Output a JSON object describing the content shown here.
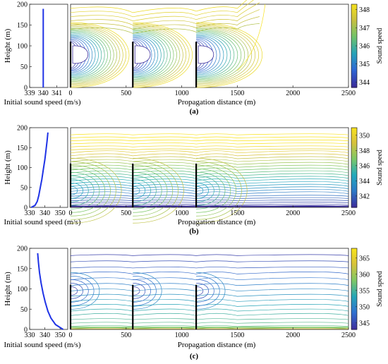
{
  "colors": {
    "profile_line": "#1f33e6",
    "cmap_a": [
      "#3a2b9a",
      "#2f66d4",
      "#27a2b8",
      "#6fc26a",
      "#c8c040",
      "#f7e11a"
    ],
    "cmap_b": [
      "#3b2e9c",
      "#2c79c7",
      "#22aabc",
      "#7cc867",
      "#d6c13c",
      "#f9e31c"
    ],
    "cmap_c": [
      "#3c2f9e",
      "#3070d0",
      "#26a6b6",
      "#80c865",
      "#d8c23a",
      "#fae61a"
    ]
  },
  "chart_data": [
    {
      "id": "a",
      "type": "contour",
      "caption": "(a)",
      "profile": {
        "xlabel": "Initial sound speed (m/s)",
        "ylabel": "Height (m)",
        "xlim": [
          339,
          341.8
        ],
        "xticks": [
          339,
          340,
          341
        ],
        "ylim": [
          0,
          200
        ],
        "yticks": [
          0,
          50,
          100,
          150,
          200
        ],
        "x": [
          340,
          340,
          340,
          340,
          340,
          340,
          340,
          340,
          340,
          340,
          340
        ],
        "y": [
          0,
          19,
          38,
          57,
          76,
          95,
          114,
          133,
          152,
          171,
          189
        ]
      },
      "field": {
        "xlabel": "Propagation distance (m)",
        "xlim": [
          0,
          2500
        ],
        "xticks": [
          0,
          500,
          1000,
          1500,
          2000,
          2500
        ],
        "ylim": [
          0,
          200
        ],
        "barriers_x": [
          0,
          560,
          1130
        ],
        "barrier_height": 110,
        "colorbar_label": "Sound speed",
        "colorbar_ticks": [
          344,
          345,
          346,
          347,
          348
        ],
        "colorbar_range": [
          343.7,
          348.3
        ]
      }
    },
    {
      "id": "b",
      "type": "contour",
      "caption": "(b)",
      "profile": {
        "xlabel": "Initial sound speed (m/s)",
        "ylabel": "Height (m)",
        "xlim": [
          330,
          355
        ],
        "xticks": [
          330,
          340,
          350
        ],
        "ylim": [
          0,
          200
        ],
        "yticks": [
          0,
          50,
          100,
          150,
          200
        ],
        "x": [
          331,
          333.5,
          335,
          336,
          337,
          338,
          339,
          340,
          340.8,
          341.5,
          342
        ],
        "y": [
          0,
          5,
          15,
          30,
          50,
          70,
          95,
          120,
          145,
          168,
          188
        ]
      },
      "field": {
        "xlabel": "Propagation distance (m)",
        "xlim": [
          0,
          2500
        ],
        "xticks": [
          0,
          500,
          1000,
          1500,
          2000,
          2500
        ],
        "ylim": [
          0,
          200
        ],
        "barriers_x": [
          0,
          560,
          1130
        ],
        "barrier_height": 110,
        "colorbar_label": "Sound speed",
        "colorbar_ticks": [
          342,
          344,
          346,
          348,
          350
        ],
        "colorbar_range": [
          340.5,
          351
        ]
      }
    },
    {
      "id": "c",
      "type": "contour",
      "caption": "(c)",
      "profile": {
        "xlabel": "Initial sound speed (m/s)",
        "ylabel": "Height (m)",
        "xlim": [
          330,
          355
        ],
        "xticks": [
          330,
          340,
          350
        ],
        "ylim": [
          0,
          200
        ],
        "yticks": [
          0,
          50,
          100,
          150,
          200
        ],
        "x": [
          352,
          347,
          344,
          342,
          340.2,
          338.8,
          337.5,
          336.5,
          335.8,
          335.3
        ],
        "y": [
          0,
          12,
          28,
          45,
          68,
          90,
          115,
          140,
          165,
          188
        ]
      },
      "field": {
        "xlabel": "Propagation distance (m)",
        "xlim": [
          0,
          2500
        ],
        "xticks": [
          0,
          500,
          1000,
          1500,
          2000,
          2500
        ],
        "ylim": [
          0,
          200
        ],
        "barriers_x": [
          0,
          560,
          1130
        ],
        "barrier_height": 110,
        "colorbar_label": "Sound speed",
        "colorbar_ticks": [
          345,
          350,
          355,
          360,
          365
        ],
        "colorbar_range": [
          343,
          368
        ]
      }
    }
  ]
}
